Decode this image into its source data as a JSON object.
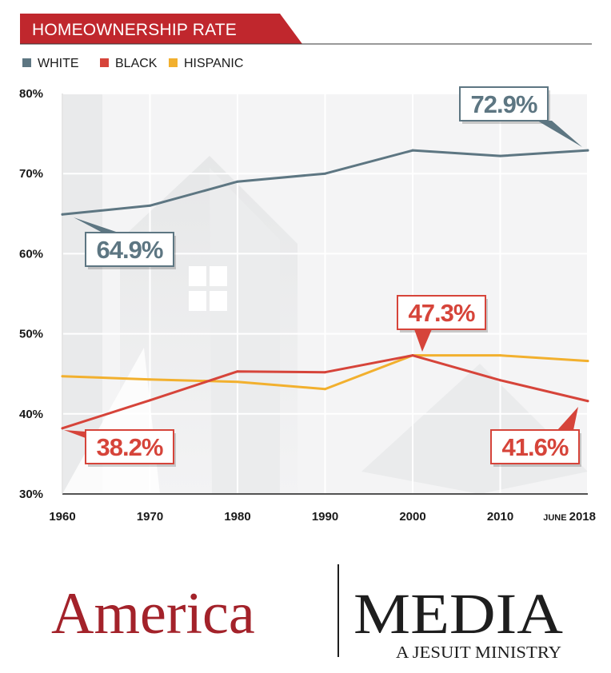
{
  "colors": {
    "white_series": "#5d7682",
    "black_series": "#d6443a",
    "hispanic_series": "#f2b02e",
    "header_banner": "#c0272d",
    "brand_red": "#a3222a",
    "brand_dark": "#1e1e1e"
  },
  "chart_data": {
    "type": "line",
    "title": "HOMEOWNERSHIP RATE",
    "x": [
      "1960",
      "1970",
      "1980",
      "1990",
      "2000",
      "2010",
      "JUNE 2018"
    ],
    "x_tick_labels": [
      {
        "value": "1960"
      },
      {
        "value": "1970"
      },
      {
        "value": "1980"
      },
      {
        "value": "1990"
      },
      {
        "value": "2000"
      },
      {
        "value": "2010"
      },
      {
        "prefix": "JUNE",
        "value": "2018"
      }
    ],
    "ylim": [
      30,
      80
    ],
    "y_ticks": [
      "30%",
      "40%",
      "50%",
      "60%",
      "70%",
      "80%"
    ],
    "grid": true,
    "legend": "top-left",
    "series": [
      {
        "name": "WHITE",
        "color": "#5d7682",
        "values": [
          64.9,
          66.0,
          69.0,
          70.0,
          72.9,
          72.2,
          72.9
        ]
      },
      {
        "name": "BLACK",
        "color": "#d6443a",
        "values": [
          38.2,
          41.7,
          45.3,
          45.2,
          47.3,
          44.2,
          41.6
        ]
      },
      {
        "name": "HISPANIC",
        "color": "#f2b02e",
        "values": [
          44.7,
          44.3,
          44.0,
          43.1,
          47.3,
          47.3,
          46.6
        ]
      }
    ],
    "annotations": [
      {
        "text": "64.9%",
        "series": "WHITE",
        "x": "1960",
        "y": 64.9
      },
      {
        "text": "72.9%",
        "series": "WHITE",
        "x": "JUNE 2018",
        "y": 72.9
      },
      {
        "text": "47.3%",
        "series": "BLACK",
        "x": "2000",
        "y": 47.3
      },
      {
        "text": "38.2%",
        "series": "BLACK",
        "x": "1960",
        "y": 38.2
      },
      {
        "text": "41.6%",
        "series": "BLACK",
        "x": "JUNE 2018",
        "y": 41.6
      }
    ]
  },
  "branding": {
    "logo_left": "America",
    "logo_right": "MEDIA",
    "tagline": "A JESUIT MINISTRY"
  }
}
